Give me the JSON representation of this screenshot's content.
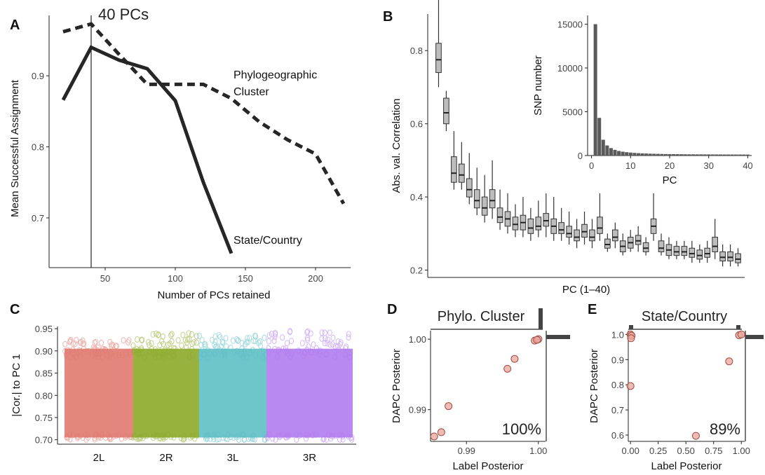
{
  "chart_data": [
    {
      "panel": "A",
      "type": "line",
      "xlabel": "Number of PCs retained",
      "ylabel": "Mean Successful Assignment",
      "xlim": [
        10,
        225
      ],
      "ylim": [
        0.63,
        0.985
      ],
      "xticks": [
        50,
        100,
        150,
        200
      ],
      "yticks": [
        0.7,
        0.8,
        0.9
      ],
      "vline": 40,
      "vline_label": "40 PCs",
      "series": [
        {
          "name": "Phylogeographic",
          "name_line2": "Cluster",
          "style": "dashed",
          "x": [
            20,
            40,
            60,
            80,
            100,
            120,
            140,
            160,
            180,
            200,
            220
          ],
          "y": [
            0.962,
            0.973,
            0.93,
            0.888,
            0.888,
            0.888,
            0.868,
            0.835,
            0.81,
            0.79,
            0.72
          ]
        },
        {
          "name": "State/Country",
          "style": "solid",
          "x": [
            20,
            40,
            60,
            80,
            100,
            120,
            140
          ],
          "y": [
            0.866,
            0.94,
            0.922,
            0.91,
            0.865,
            0.75,
            0.65
          ]
        }
      ]
    },
    {
      "panel": "B",
      "type": "box",
      "xlabel": "PC (1–40)",
      "ylabel": "Abs. val. Correlation",
      "ylim": [
        0.18,
        0.9
      ],
      "yticks": [
        0.2,
        0.4,
        0.6,
        0.8
      ],
      "boxes": [
        {
          "q1": 0.74,
          "med": 0.775,
          "q3": 0.82,
          "lo": 0.7,
          "hi": 0.95
        },
        {
          "q1": 0.6,
          "med": 0.63,
          "q3": 0.67,
          "lo": 0.58,
          "hi": 0.69
        },
        {
          "q1": 0.44,
          "med": 0.465,
          "q3": 0.51,
          "lo": 0.42,
          "hi": 0.58
        },
        {
          "q1": 0.44,
          "med": 0.46,
          "q3": 0.49,
          "lo": 0.42,
          "hi": 0.55
        },
        {
          "q1": 0.4,
          "med": 0.42,
          "q3": 0.45,
          "lo": 0.38,
          "hi": 0.52
        },
        {
          "q1": 0.37,
          "med": 0.39,
          "q3": 0.42,
          "lo": 0.35,
          "hi": 0.48
        },
        {
          "q1": 0.35,
          "med": 0.37,
          "q3": 0.4,
          "lo": 0.33,
          "hi": 0.46
        },
        {
          "q1": 0.37,
          "med": 0.39,
          "q3": 0.42,
          "lo": 0.34,
          "hi": 0.5
        },
        {
          "q1": 0.33,
          "med": 0.345,
          "q3": 0.37,
          "lo": 0.31,
          "hi": 0.42
        },
        {
          "q1": 0.32,
          "med": 0.34,
          "q3": 0.36,
          "lo": 0.3,
          "hi": 0.41
        },
        {
          "q1": 0.31,
          "med": 0.325,
          "q3": 0.345,
          "lo": 0.29,
          "hi": 0.38
        },
        {
          "q1": 0.31,
          "med": 0.33,
          "q3": 0.35,
          "lo": 0.29,
          "hi": 0.4
        },
        {
          "q1": 0.3,
          "med": 0.315,
          "q3": 0.34,
          "lo": 0.28,
          "hi": 0.37
        },
        {
          "q1": 0.31,
          "med": 0.32,
          "q3": 0.345,
          "lo": 0.29,
          "hi": 0.39
        },
        {
          "q1": 0.32,
          "med": 0.335,
          "q3": 0.355,
          "lo": 0.29,
          "hi": 0.41
        },
        {
          "q1": 0.3,
          "med": 0.32,
          "q3": 0.34,
          "lo": 0.28,
          "hi": 0.4
        },
        {
          "q1": 0.3,
          "med": 0.31,
          "q3": 0.33,
          "lo": 0.28,
          "hi": 0.37
        },
        {
          "q1": 0.29,
          "med": 0.3,
          "q3": 0.32,
          "lo": 0.27,
          "hi": 0.36
        },
        {
          "q1": 0.28,
          "med": 0.29,
          "q3": 0.31,
          "lo": 0.26,
          "hi": 0.34
        },
        {
          "q1": 0.29,
          "med": 0.305,
          "q3": 0.325,
          "lo": 0.27,
          "hi": 0.36
        },
        {
          "q1": 0.28,
          "med": 0.29,
          "q3": 0.31,
          "lo": 0.26,
          "hi": 0.34
        },
        {
          "q1": 0.3,
          "med": 0.315,
          "q3": 0.345,
          "lo": 0.28,
          "hi": 0.42
        },
        {
          "q1": 0.26,
          "med": 0.27,
          "q3": 0.285,
          "lo": 0.25,
          "hi": 0.3
        },
        {
          "q1": 0.28,
          "med": 0.29,
          "q3": 0.31,
          "lo": 0.26,
          "hi": 0.33
        },
        {
          "q1": 0.25,
          "med": 0.265,
          "q3": 0.28,
          "lo": 0.24,
          "hi": 0.3
        },
        {
          "q1": 0.26,
          "med": 0.275,
          "q3": 0.29,
          "lo": 0.25,
          "hi": 0.31
        },
        {
          "q1": 0.27,
          "med": 0.28,
          "q3": 0.295,
          "lo": 0.25,
          "hi": 0.32
        },
        {
          "q1": 0.25,
          "med": 0.26,
          "q3": 0.275,
          "lo": 0.24,
          "hi": 0.29
        },
        {
          "q1": 0.3,
          "med": 0.32,
          "q3": 0.34,
          "lo": 0.28,
          "hi": 0.42
        },
        {
          "q1": 0.25,
          "med": 0.26,
          "q3": 0.28,
          "lo": 0.24,
          "hi": 0.3
        },
        {
          "q1": 0.24,
          "med": 0.255,
          "q3": 0.27,
          "lo": 0.23,
          "hi": 0.29
        },
        {
          "q1": 0.24,
          "med": 0.25,
          "q3": 0.265,
          "lo": 0.23,
          "hi": 0.28
        },
        {
          "q1": 0.24,
          "med": 0.25,
          "q3": 0.265,
          "lo": 0.23,
          "hi": 0.28
        },
        {
          "q1": 0.235,
          "med": 0.245,
          "q3": 0.26,
          "lo": 0.22,
          "hi": 0.28
        },
        {
          "q1": 0.23,
          "med": 0.24,
          "q3": 0.255,
          "lo": 0.22,
          "hi": 0.27
        },
        {
          "q1": 0.235,
          "med": 0.245,
          "q3": 0.26,
          "lo": 0.22,
          "hi": 0.28
        },
        {
          "q1": 0.25,
          "med": 0.265,
          "q3": 0.29,
          "lo": 0.23,
          "hi": 0.34
        },
        {
          "q1": 0.225,
          "med": 0.235,
          "q3": 0.25,
          "lo": 0.21,
          "hi": 0.27
        },
        {
          "q1": 0.225,
          "med": 0.235,
          "q3": 0.25,
          "lo": 0.21,
          "hi": 0.27
        },
        {
          "q1": 0.22,
          "med": 0.23,
          "q3": 0.245,
          "lo": 0.21,
          "hi": 0.26
        }
      ]
    },
    {
      "panel": "B-inset",
      "type": "bar",
      "xlabel": "PC",
      "ylabel": "SNP number",
      "xlim": [
        -1,
        41
      ],
      "ylim": [
        0,
        16000
      ],
      "xticks": [
        0,
        10,
        20,
        30,
        40
      ],
      "yticks": [
        0,
        5000,
        10000,
        15000
      ],
      "values": [
        15000,
        4300,
        1800,
        1150,
        850,
        650,
        520,
        440,
        380,
        340,
        300,
        270,
        250,
        230,
        215,
        200,
        190,
        180,
        170,
        165,
        160,
        155,
        150,
        145,
        140,
        138,
        135,
        132,
        130,
        128,
        126,
        124,
        122,
        120,
        118,
        117,
        116,
        115,
        114,
        113
      ]
    },
    {
      "panel": "C",
      "type": "scatter",
      "ylabel": "|Cor.| to PC 1",
      "ylim": [
        0.69,
        0.955
      ],
      "yticks": [
        0.7,
        0.75,
        0.8,
        0.85,
        0.9,
        0.95
      ],
      "categories": [
        {
          "label": "2L",
          "color": "#E07A70",
          "top": 0.925
        },
        {
          "label": "2R",
          "color": "#8DAA2B",
          "top": 0.94
        },
        {
          "label": "3L",
          "color": "#5EBFC4",
          "top": 0.935
        },
        {
          "label": "3R",
          "color": "#B07CF0",
          "top": 0.945
        }
      ]
    },
    {
      "panel": "D",
      "type": "scatter",
      "title": "Phylo. Cluster",
      "xlabel": "Label Posterior",
      "ylabel": "DAPC Posterior",
      "xlim": [
        0.985,
        1.001
      ],
      "ylim": [
        0.9855,
        1.0012
      ],
      "xticks": [
        {
          "v": 0.99,
          "label": "0.99"
        },
        {
          "v": 1.0,
          "label": "1.00"
        }
      ],
      "yticks": [
        {
          "v": 0.99,
          "label": "0.99"
        },
        {
          "v": 1.0,
          "label": "1.00"
        }
      ],
      "percent": "100%",
      "points": [
        [
          0.9855,
          0.9862
        ],
        [
          0.9865,
          0.9868
        ],
        [
          0.9875,
          0.9905
        ],
        [
          0.9957,
          0.9958
        ],
        [
          0.9967,
          0.9972
        ],
        [
          0.9995,
          0.9998
        ],
        [
          1.0,
          1.0
        ],
        [
          0.9998,
          0.9999
        ]
      ]
    },
    {
      "panel": "E",
      "type": "scatter",
      "title": "State/Country",
      "xlabel": "Label Posterior",
      "ylabel": "DAPC Posterior",
      "xlim": [
        -0.02,
        1.03
      ],
      "ylim": [
        0.575,
        1.015
      ],
      "xticks": [
        {
          "v": 0,
          "label": "0.00"
        },
        {
          "v": 0.25,
          "label": "0.25"
        },
        {
          "v": 0.5,
          "label": "0.50"
        },
        {
          "v": 0.75,
          "label": "0.75"
        },
        {
          "v": 1.0,
          "label": "1.00"
        }
      ],
      "yticks": [
        {
          "v": 0.6,
          "label": "0.6"
        },
        {
          "v": 0.7,
          "label": "0.7"
        },
        {
          "v": 0.8,
          "label": "0.8"
        },
        {
          "v": 0.9,
          "label": "0.9"
        },
        {
          "v": 1.0,
          "label": "1.0"
        }
      ],
      "percent": "89%",
      "points": [
        [
          0.0,
          1.0
        ],
        [
          0.01,
          0.995
        ],
        [
          0.005,
          0.985
        ],
        [
          0.0,
          0.795
        ],
        [
          0.59,
          0.597
        ],
        [
          0.89,
          0.893
        ],
        [
          0.98,
          0.997
        ],
        [
          1.0,
          1.0
        ]
      ]
    }
  ]
}
